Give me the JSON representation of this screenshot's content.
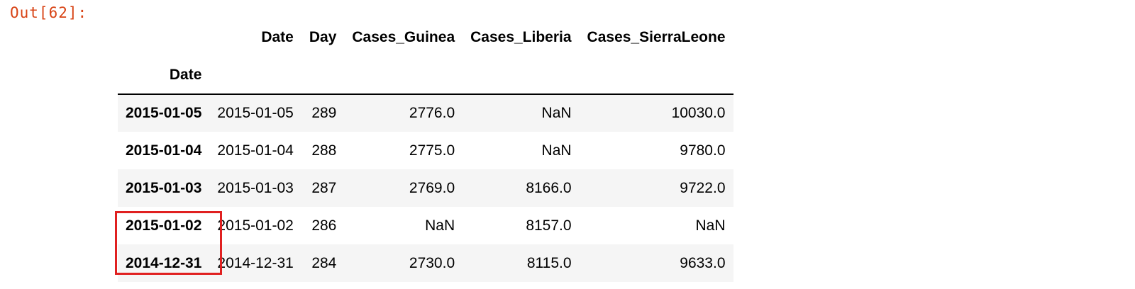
{
  "cell": {
    "out_prompt": "Out[62]:"
  },
  "table": {
    "columns": [
      "Date",
      "Day",
      "Cases_Guinea",
      "Cases_Liberia",
      "Cases_SierraLeone"
    ],
    "index_name": "Date",
    "rows": [
      {
        "index": "2015-01-05",
        "values": [
          "2015-01-05",
          "289",
          "2776.0",
          "NaN",
          "10030.0"
        ]
      },
      {
        "index": "2015-01-04",
        "values": [
          "2015-01-04",
          "288",
          "2775.0",
          "NaN",
          "9780.0"
        ]
      },
      {
        "index": "2015-01-03",
        "values": [
          "2015-01-03",
          "287",
          "2769.0",
          "8166.0",
          "9722.0"
        ]
      },
      {
        "index": "2015-01-02",
        "values": [
          "2015-01-02",
          "286",
          "NaN",
          "8157.0",
          "NaN"
        ]
      },
      {
        "index": "2014-12-31",
        "values": [
          "2014-12-31",
          "284",
          "2730.0",
          "8115.0",
          "9633.0"
        ]
      }
    ]
  },
  "annotation": {
    "color": "#e02020"
  }
}
